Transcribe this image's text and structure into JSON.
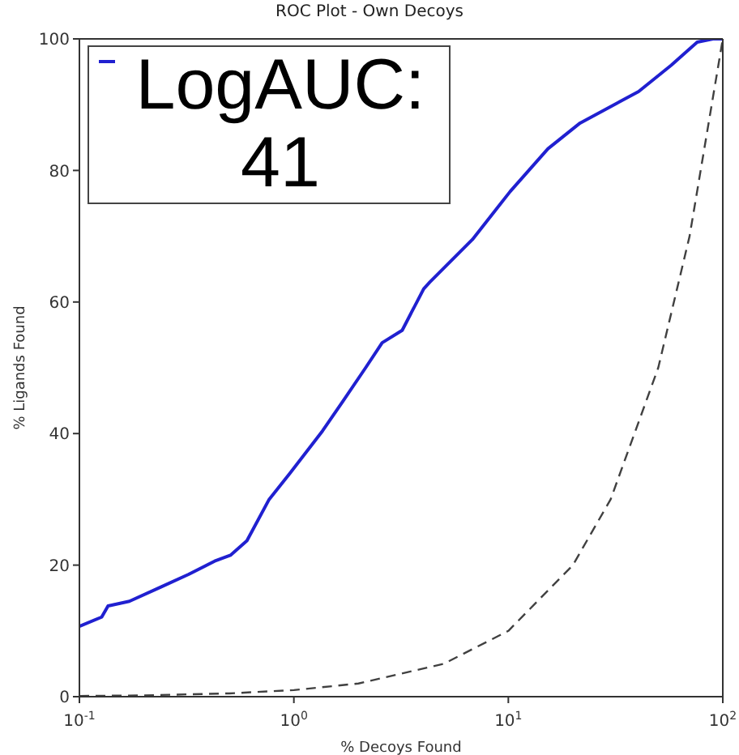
{
  "chart_data": {
    "type": "line",
    "title": "ROC Plot - Own Decoys",
    "xlabel": "% Decoys Found",
    "ylabel": "% Ligands Found",
    "log": "x",
    "xlim": [
      0.1,
      100
    ],
    "ylim": [
      0,
      100
    ],
    "xticks": [
      {
        "value": 0.1,
        "label": "10$^{-1}$"
      },
      {
        "value": 1,
        "label": "10$^{0}$"
      },
      {
        "value": 10,
        "label": "10$^{1}$"
      },
      {
        "value": 100,
        "label": "10$^{2}$"
      }
    ],
    "yticks": [
      0,
      20,
      40,
      60,
      80,
      100
    ],
    "grid": false,
    "legend": "top left",
    "marker": "none",
    "series": [
      {
        "name": "LogAUC: 41",
        "color": "#2020d0",
        "line_style": "solid",
        "x": [
          0.1,
          0.127,
          0.136,
          0.171,
          0.241,
          0.323,
          0.427,
          0.506,
          0.604,
          0.767,
          0.96,
          1.36,
          1.7,
          2.16,
          2.58,
          3.2,
          4.03,
          4.3,
          6.8,
          10.2,
          15.3,
          21.6,
          40.5,
          57.5,
          76,
          90,
          100
        ],
        "values": [
          10.7,
          12.1,
          13.8,
          14.5,
          16.7,
          18.6,
          20.6,
          21.5,
          23.7,
          30,
          34,
          40.4,
          45,
          50,
          53.8,
          55.7,
          62,
          63,
          69.5,
          76.8,
          83.3,
          87.2,
          92,
          96,
          99.5,
          100,
          100
        ]
      },
      {
        "color": "#404040",
        "line_style": "dashed",
        "x": [
          0.1,
          0.2,
          0.5,
          1,
          2,
          5,
          10,
          20,
          30,
          50,
          70,
          100
        ],
        "values": [
          0.1,
          0.2,
          0.5,
          1,
          2,
          5,
          10,
          20,
          30,
          50,
          70,
          100
        ]
      }
    ]
  }
}
